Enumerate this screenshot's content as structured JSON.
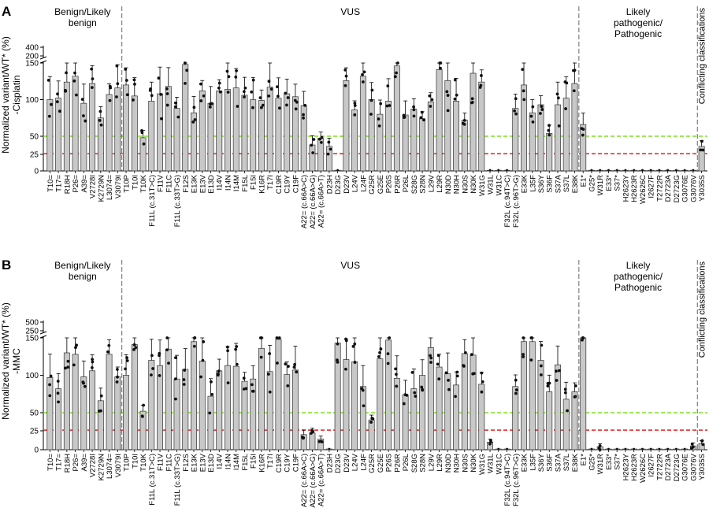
{
  "figure": {
    "panels": [
      "A",
      "B"
    ],
    "group_labels": [
      "Benign/Likely benign",
      "VUS",
      "Likely pathogenic/ Pathogenic",
      "Conflicting classifications"
    ],
    "colors": {
      "bar_fill": "#c8c8c8",
      "bar_stroke": "#333333",
      "threshold_high": "#7ee021",
      "threshold_low": "#e02020",
      "divider": "#666666",
      "dot": "#111111"
    }
  },
  "chart_data": [
    {
      "type": "bar",
      "panel": "A",
      "ylabel": "Normalized variant/WT* (%)",
      "ylabel2": "-Cisplatin",
      "yticks_low": [
        "0",
        "25",
        "50",
        "100",
        "150"
      ],
      "yticks_high": [
        "200",
        "400"
      ],
      "ylim": [
        0,
        400
      ],
      "axis_break": [
        150,
        200
      ],
      "threshold_lines": [
        50,
        26
      ],
      "categories": [
        "T10=",
        "T17=",
        "R18H",
        "P26=",
        "A39=",
        "V2728I",
        "K2729N",
        "L3074=",
        "V3079I",
        "T10P",
        "T10I",
        "T10K",
        "F11L (c.31T>C)",
        "F11V",
        "F11C",
        "F11L (c.33T>G)",
        "F12S",
        "E13K",
        "E13V",
        "E13D",
        "I14V",
        "I14N",
        "I14M",
        "F15L",
        "F15I",
        "K16R",
        "T17I",
        "C19R",
        "C19Y",
        "C19F",
        "A22= (c.66A>C)",
        "A22= (c.66A>G)",
        "A22= (c.66A>T)",
        "D23H",
        "D23G",
        "D23V",
        "L24V",
        "L24F",
        "G25R",
        "G25E",
        "P26S",
        "P26R",
        "P26L",
        "S28G",
        "S28N",
        "L29V",
        "L29R",
        "N30D",
        "N30H",
        "N30S",
        "N30K",
        "W31G",
        "W31L",
        "W31C",
        "F32L (c.94T>C)",
        "F32L (c.96T>G)",
        "E33K",
        "L35F",
        "S36Y",
        "S36F",
        "S37A",
        "S37L",
        "E38K",
        "E1*",
        "G25*",
        "W31R",
        "E33*",
        "S37*",
        "H2623Y",
        "H2623R",
        "W2626C",
        "I2627F",
        "T2722R",
        "D2723A",
        "D2723G",
        "G3076E",
        "G3076V",
        "Y3035S"
      ],
      "values": [
        100,
        102,
        124,
        132,
        95,
        122,
        75,
        107,
        116,
        120,
        105,
        48,
        98,
        108,
        118,
        88,
        148,
        82,
        112,
        95,
        112,
        114,
        116,
        106,
        100,
        99,
        117,
        102,
        108,
        104,
        92,
        38,
        47,
        36,
        1,
        126,
        86,
        132,
        100,
        80,
        98,
        146,
        79,
        87,
        74,
        97,
        141,
        126,
        98,
        72,
        136,
        124,
        1,
        1,
        1,
        88,
        120,
        82,
        93,
        54,
        93,
        102,
        122,
        66,
        1,
        1,
        1,
        1,
        1,
        1,
        1,
        1,
        1,
        1,
        1,
        1,
        1,
        36
      ],
      "group_boundaries_after_index": [
        8,
        62,
        76
      ]
    },
    {
      "type": "bar",
      "panel": "B",
      "ylabel": "Normalized variant/WT* (%)",
      "ylabel2": "-MMC",
      "yticks_low": [
        "0",
        "25",
        "50",
        "100",
        "150"
      ],
      "yticks_high": [
        "250",
        "500"
      ],
      "ylim": [
        0,
        500
      ],
      "axis_break": [
        150,
        250
      ],
      "threshold_lines": [
        50,
        26
      ],
      "categories": [
        "T10=",
        "T17=",
        "R18H",
        "P26=",
        "A39=",
        "V2728I",
        "K2729N",
        "L3074=",
        "V3079I",
        "T10P",
        "T10I",
        "T10K",
        "F11L (c.31T>C)",
        "F11V",
        "F11C",
        "F11L (c.33T>G)",
        "F12S",
        "E13K",
        "E13V",
        "E13D",
        "I14V",
        "I14N",
        "I14M",
        "F15L",
        "F15I",
        "K16R",
        "T17I",
        "C19R",
        "C19Y",
        "C19F",
        "A22= (c.66A>C)",
        "A22= (c.66A>G)",
        "A22= (c.66A>T)",
        "D23H",
        "D23G",
        "D23V",
        "L24V",
        "L24F",
        "G25R",
        "G25E",
        "P26S",
        "P26R",
        "P26L",
        "S28G",
        "S28N",
        "L29V",
        "L29R",
        "N30D",
        "N30H",
        "N30S",
        "N30K",
        "W31G",
        "W31L",
        "W31C",
        "F32L (c.94T>C)",
        "F32L (c.96T>G)",
        "E33K",
        "L35F",
        "S36Y",
        "S36F",
        "S37A",
        "S37L",
        "E38K",
        "E1*",
        "G25*",
        "W31R",
        "E33*",
        "S37*",
        "H2623Y",
        "H2623R",
        "W2626C",
        "I2627F",
        "T2722R",
        "D2723A",
        "D2723G",
        "G3076E",
        "G3076V",
        "Y3035S"
      ],
      "values": [
        97,
        82,
        130,
        128,
        98,
        106,
        66,
        128,
        98,
        100,
        141,
        52,
        120,
        113,
        135,
        95,
        108,
        145,
        119,
        72,
        106,
        113,
        112,
        92,
        95,
        136,
        105,
        148,
        101,
        107,
        20,
        22,
        14,
        1,
        143,
        121,
        118,
        85,
        40,
        122,
        147,
        96,
        74,
        82,
        100,
        137,
        111,
        102,
        87,
        129,
        127,
        88,
        10,
        1,
        1,
        85,
        145,
        145,
        120,
        78,
        114,
        68,
        78,
        152,
        1,
        4,
        1,
        1,
        1,
        1,
        1,
        1,
        1,
        1,
        1,
        1,
        5,
        8
      ],
      "group_boundaries_after_index": [
        8,
        62,
        76
      ]
    }
  ]
}
